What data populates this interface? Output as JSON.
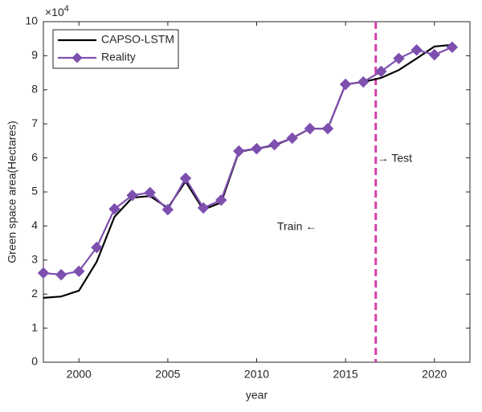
{
  "chart_data": {
    "type": "line",
    "x": [
      1998,
      1999,
      2000,
      2001,
      2002,
      2003,
      2004,
      2005,
      2006,
      2007,
      2008,
      2009,
      2010,
      2011,
      2012,
      2013,
      2014,
      2015,
      2016,
      2017,
      2018,
      2019,
      2020,
      2021
    ],
    "series": [
      {
        "name": "CAPSO-LSTM",
        "color": "#000000",
        "marker": "none",
        "values": [
          1.89,
          1.93,
          2.1,
          2.95,
          4.27,
          4.83,
          4.88,
          4.53,
          5.31,
          4.48,
          4.69,
          6.18,
          6.27,
          6.37,
          6.58,
          6.86,
          6.86,
          8.16,
          8.23,
          8.35,
          8.58,
          8.92,
          9.27,
          9.32
        ]
      },
      {
        "name": "Reality",
        "color": "#7d4fae",
        "marker": "diamond",
        "values": [
          2.62,
          2.57,
          2.67,
          3.37,
          4.5,
          4.9,
          4.98,
          4.48,
          5.4,
          4.53,
          4.76,
          6.2,
          6.27,
          6.39,
          6.58,
          6.86,
          6.86,
          8.16,
          8.23,
          8.54,
          8.92,
          9.17,
          9.03,
          9.25
        ]
      }
    ],
    "xlabel": "year",
    "ylabel": "Green space area(Hectares)",
    "y_multiplier_label": "×10",
    "y_multiplier_exponent": "4",
    "xlim": [
      1998,
      2022
    ],
    "xticks": [
      2000,
      2005,
      2010,
      2015,
      2020
    ],
    "ylim": [
      0,
      10
    ],
    "yticks": [
      0,
      1,
      2,
      3,
      4,
      5,
      6,
      7,
      8,
      9,
      10
    ],
    "split_x": 2016.7,
    "split_color": "#d63fa8",
    "annotations": [
      "→ Test",
      "Train ←"
    ],
    "grid": false,
    "legend": "upper left"
  }
}
